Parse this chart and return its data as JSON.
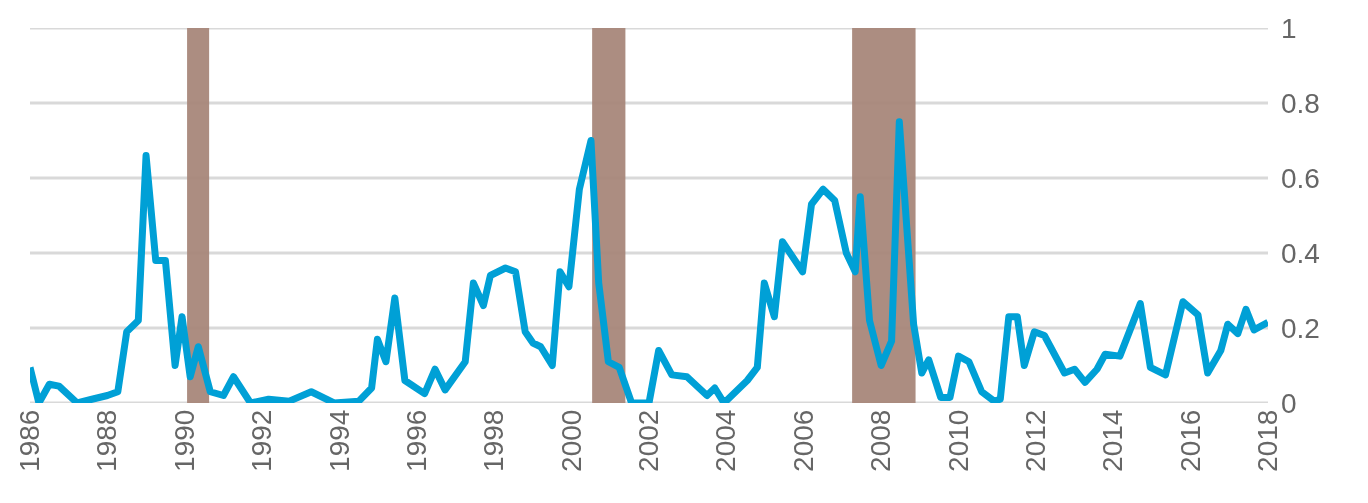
{
  "chart_data": {
    "type": "line",
    "x": [
      1986.0,
      1986.23,
      1986.5,
      1986.75,
      1987.22,
      1987.6,
      1988.0,
      1988.27,
      1988.5,
      1988.8,
      1989.0,
      1989.25,
      1989.5,
      1989.75,
      1989.93,
      1990.14,
      1990.35,
      1990.66,
      1991.0,
      1991.26,
      1991.7,
      1992.17,
      1992.7,
      1993.27,
      1993.86,
      1994.5,
      1994.83,
      1994.98,
      1995.2,
      1995.43,
      1995.69,
      1996.2,
      1996.47,
      1996.73,
      1997.25,
      1997.46,
      1997.72,
      1997.9,
      1998.29,
      1998.55,
      1998.8,
      1999.0,
      1999.2,
      1999.5,
      1999.7,
      1999.93,
      2000.2,
      2000.5,
      2000.7,
      2000.95,
      2001.23,
      2001.55,
      2002.0,
      2002.25,
      2002.59,
      2002.98,
      2003.5,
      2003.7,
      2003.94,
      2004.54,
      2004.8,
      2004.98,
      2005.24,
      2005.45,
      2005.97,
      2006.2,
      2006.5,
      2006.8,
      2007.1,
      2007.33,
      2007.46,
      2007.7,
      2008.0,
      2008.27,
      2008.47,
      2008.84,
      2009.05,
      2009.23,
      2009.54,
      2009.78,
      2010.0,
      2010.27,
      2010.6,
      2010.92,
      2011.08,
      2011.3,
      2011.52,
      2011.7,
      2011.96,
      2012.22,
      2012.74,
      2013.0,
      2013.27,
      2013.58,
      2013.79,
      2014.17,
      2014.7,
      2014.96,
      2015.35,
      2015.8,
      2016.19,
      2016.44,
      2016.78,
      2016.96,
      2017.22,
      2017.43,
      2017.64,
      2018.0
    ],
    "series": [
      {
        "color": "#00a0d6",
        "values": [
          0.095,
          0.0,
          0.05,
          0.045,
          0.0,
          0.01,
          0.02,
          0.03,
          0.19,
          0.22,
          0.66,
          0.38,
          0.38,
          0.1,
          0.23,
          0.07,
          0.15,
          0.03,
          0.02,
          0.07,
          0.0,
          0.01,
          0.005,
          0.03,
          0.0,
          0.005,
          0.04,
          0.17,
          0.11,
          0.28,
          0.06,
          0.025,
          0.09,
          0.035,
          0.11,
          0.32,
          0.26,
          0.34,
          0.36,
          0.35,
          0.19,
          0.16,
          0.15,
          0.1,
          0.35,
          0.31,
          0.57,
          0.7,
          0.32,
          0.11,
          0.095,
          0.0,
          0.0,
          0.14,
          0.075,
          0.07,
          0.02,
          0.04,
          0.0,
          0.06,
          0.095,
          0.32,
          0.23,
          0.43,
          0.35,
          0.53,
          0.57,
          0.54,
          0.4,
          0.35,
          0.55,
          0.22,
          0.1,
          0.165,
          0.75,
          0.21,
          0.08,
          0.115,
          0.015,
          0.015,
          0.125,
          0.11,
          0.03,
          0.005,
          0.01,
          0.23,
          0.23,
          0.1,
          0.19,
          0.18,
          0.08,
          0.09,
          0.055,
          0.09,
          0.13,
          0.125,
          0.265,
          0.095,
          0.075,
          0.27,
          0.235,
          0.08,
          0.14,
          0.21,
          0.185,
          0.25,
          0.195,
          0.215
        ]
      }
    ],
    "bands": [
      {
        "axis": "x",
        "from": 1990.06,
        "to": 1990.63,
        "color": "#a8877a"
      },
      {
        "axis": "x",
        "from": 2000.53,
        "to": 2001.39,
        "color": "#a8877a"
      },
      {
        "axis": "x",
        "from": 2007.25,
        "to": 2008.89,
        "color": "#a8877a"
      }
    ],
    "xlim": [
      1986,
      2018
    ],
    "xticks": [
      1986,
      1988,
      1990,
      1992,
      1994,
      1996,
      1998,
      2000,
      2002,
      2004,
      2006,
      2008,
      2010,
      2012,
      2014,
      2016,
      2018
    ],
    "ylim": [
      0,
      1
    ],
    "yticks": [
      0,
      0.2,
      0.4,
      0.6,
      0.8,
      1
    ],
    "grid": "y",
    "marker": "none",
    "line_style": "solid"
  }
}
